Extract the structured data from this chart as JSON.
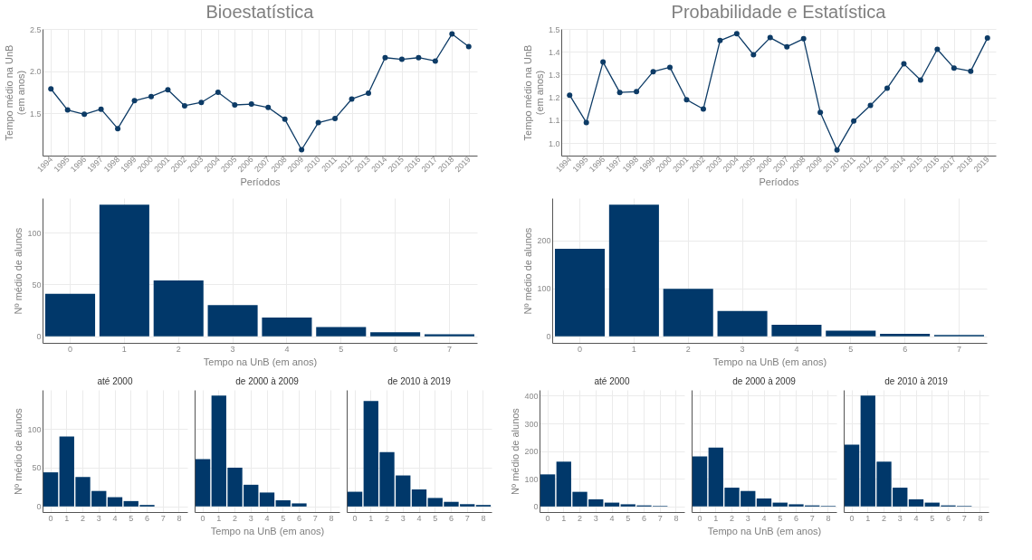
{
  "chart_data": [
    {
      "type": "line",
      "title": "Bioestatística",
      "xlabel": "Períodos",
      "ylabel": "Tempo médio na UnB\n(em anos)",
      "categories": [
        "1994",
        "1995",
        "1996",
        "1997",
        "1998",
        "1999",
        "2000",
        "2001",
        "2002",
        "2003",
        "2004",
        "2005",
        "2006",
        "2007",
        "2008",
        "2009",
        "2010",
        "2011",
        "2012",
        "2013",
        "2014",
        "2015",
        "2016",
        "2017",
        "2018",
        "2019"
      ],
      "series": [
        {
          "color": "#0d3b66",
          "values": [
            1.79,
            1.54,
            1.49,
            1.55,
            1.32,
            1.65,
            1.7,
            1.78,
            1.59,
            1.63,
            1.75,
            1.6,
            1.61,
            1.57,
            1.43,
            1.07,
            1.39,
            1.44,
            1.67,
            1.74,
            2.16,
            2.14,
            2.16,
            2.12,
            2.44,
            2.29
          ]
        }
      ],
      "ylim": [
        1.0,
        2.5
      ],
      "yticks": [
        {
          "value": 1.5,
          "label": "1.5"
        },
        {
          "value": 2.0,
          "label": "2.0"
        },
        {
          "value": 2.5,
          "label": "2.5"
        }
      ],
      "grid": true,
      "marker": "circle"
    },
    {
      "type": "line",
      "title": "Probabilidade e Estatística",
      "xlabel": "Períodos",
      "ylabel": "Tempo médio na UnB\n(em anos)",
      "categories": [
        "1994",
        "1995",
        "1996",
        "1997",
        "1998",
        "1999",
        "2000",
        "2001",
        "2002",
        "2003",
        "2004",
        "2005",
        "2006",
        "2007",
        "2008",
        "2009",
        "2010",
        "2011",
        "2012",
        "2013",
        "2014",
        "2015",
        "2016",
        "2017",
        "2018",
        "2019"
      ],
      "series": [
        {
          "color": "#0d3b66",
          "values": [
            1.21,
            1.09,
            1.355,
            1.222,
            1.225,
            1.313,
            1.332,
            1.19,
            1.149,
            1.449,
            1.479,
            1.387,
            1.462,
            1.422,
            1.457,
            1.134,
            0.97,
            1.097,
            1.165,
            1.24,
            1.347,
            1.276,
            1.411,
            1.329,
            1.315,
            1.46
          ]
        }
      ],
      "ylim": [
        0.945,
        1.5
      ],
      "yticks": [
        {
          "value": 1.0,
          "label": "1.0"
        },
        {
          "value": 1.1,
          "label": "1.1"
        },
        {
          "value": 1.2,
          "label": "1.2"
        },
        {
          "value": 1.3,
          "label": "1.3"
        },
        {
          "value": 1.4,
          "label": "1.4"
        },
        {
          "value": 1.5,
          "label": "1.5"
        }
      ],
      "grid": true,
      "marker": "circle"
    },
    {
      "type": "bar",
      "xlabel": "Tempo na UnB (em anos)",
      "ylabel": "Nº médio de alunos",
      "categories": [
        "0",
        "1",
        "2",
        "3",
        "4",
        "5",
        "6",
        "7"
      ],
      "series": [
        {
          "color": "#01386a",
          "values": [
            41,
            127,
            54,
            30,
            18,
            9,
            4,
            2
          ]
        }
      ],
      "ylim": [
        -6.35,
        133.35
      ],
      "yticks": [
        0,
        50,
        100
      ],
      "grid": true
    },
    {
      "type": "bar",
      "xlabel": "Tempo na UnB (em anos)",
      "ylabel": "Nº médio de alunos",
      "categories": [
        "0",
        "1",
        "2",
        "3",
        "4",
        "5",
        "6",
        "7"
      ],
      "series": [
        {
          "color": "#01386a",
          "values": [
            183,
            275,
            99,
            53,
            24,
            12,
            5,
            3
          ]
        }
      ],
      "ylim": [
        -13.75,
        288.75
      ],
      "yticks": [
        0,
        100,
        200
      ],
      "grid": true
    },
    {
      "type": "bar",
      "title": "até 2000",
      "ylabel": "Nº médio de alunos",
      "categories": [
        "0",
        "1",
        "2",
        "3",
        "4",
        "5",
        "6",
        "7",
        "8"
      ],
      "series": [
        {
          "color": "#01386a",
          "values": [
            44,
            90,
            38,
            20,
            12,
            7,
            2,
            null,
            null
          ]
        }
      ],
      "ylim": [
        -7.15,
        150.15
      ],
      "yticks": [
        0,
        50,
        100
      ],
      "grid": true
    },
    {
      "type": "bar",
      "title": "de 2000 à 2009",
      "xlabel": "Tempo na UnB (em anos)",
      "categories": [
        "0",
        "1",
        "2",
        "3",
        "4",
        "5",
        "6",
        "7",
        "8"
      ],
      "series": [
        {
          "color": "#01386a",
          "values": [
            61,
            143,
            50,
            28,
            18,
            8,
            4,
            null,
            null
          ]
        }
      ],
      "ylim": [
        -7.15,
        150.15
      ],
      "yticks": [
        0,
        50,
        100
      ],
      "grid": true,
      "tick_labels": "x"
    },
    {
      "type": "bar",
      "title": "de 2010 à 2019",
      "categories": [
        "0",
        "1",
        "2",
        "3",
        "4",
        "5",
        "6",
        "7",
        "8"
      ],
      "series": [
        {
          "color": "#01386a",
          "values": [
            19,
            136,
            70,
            40,
            22,
            11,
            6,
            3,
            2
          ]
        }
      ],
      "ylim": [
        -7.15,
        150.15
      ],
      "yticks": [
        0,
        50,
        100
      ],
      "grid": true,
      "tick_labels": "x"
    },
    {
      "type": "bar",
      "title": "até 2000",
      "ylabel": "Nº médio de alunos",
      "categories": [
        "0",
        "1",
        "2",
        "3",
        "4",
        "5",
        "6",
        "7",
        "8"
      ],
      "series": [
        {
          "color": "#01386a",
          "values": [
            116,
            162,
            53,
            26,
            14,
            8,
            4,
            2,
            null
          ]
        }
      ],
      "ylim": [
        -20.05,
        421.05
      ],
      "yticks": [
        0,
        100,
        200,
        300,
        400
      ],
      "grid": true
    },
    {
      "type": "bar",
      "title": "de 2000 à 2009",
      "xlabel": "Tempo na UnB (em anos)",
      "categories": [
        "0",
        "1",
        "2",
        "3",
        "4",
        "5",
        "6",
        "7",
        "8"
      ],
      "series": [
        {
          "color": "#01386a",
          "values": [
            181,
            213,
            68,
            56,
            29,
            14,
            8,
            4,
            2
          ]
        }
      ],
      "ylim": [
        -20.05,
        421.05
      ],
      "yticks": [
        0,
        100,
        200,
        300,
        400
      ],
      "grid": true,
      "tick_labels": "x"
    },
    {
      "type": "bar",
      "title": "de 2010 à 2019",
      "categories": [
        "0",
        "1",
        "2",
        "3",
        "4",
        "5",
        "6",
        "7",
        "8"
      ],
      "series": [
        {
          "color": "#01386a",
          "values": [
            223,
            401,
            162,
            68,
            26,
            14,
            4,
            2,
            null
          ]
        }
      ],
      "ylim": [
        -20.05,
        421.05
      ],
      "yticks": [
        0,
        100,
        200,
        300,
        400
      ],
      "grid": true,
      "tick_labels": "x"
    }
  ]
}
